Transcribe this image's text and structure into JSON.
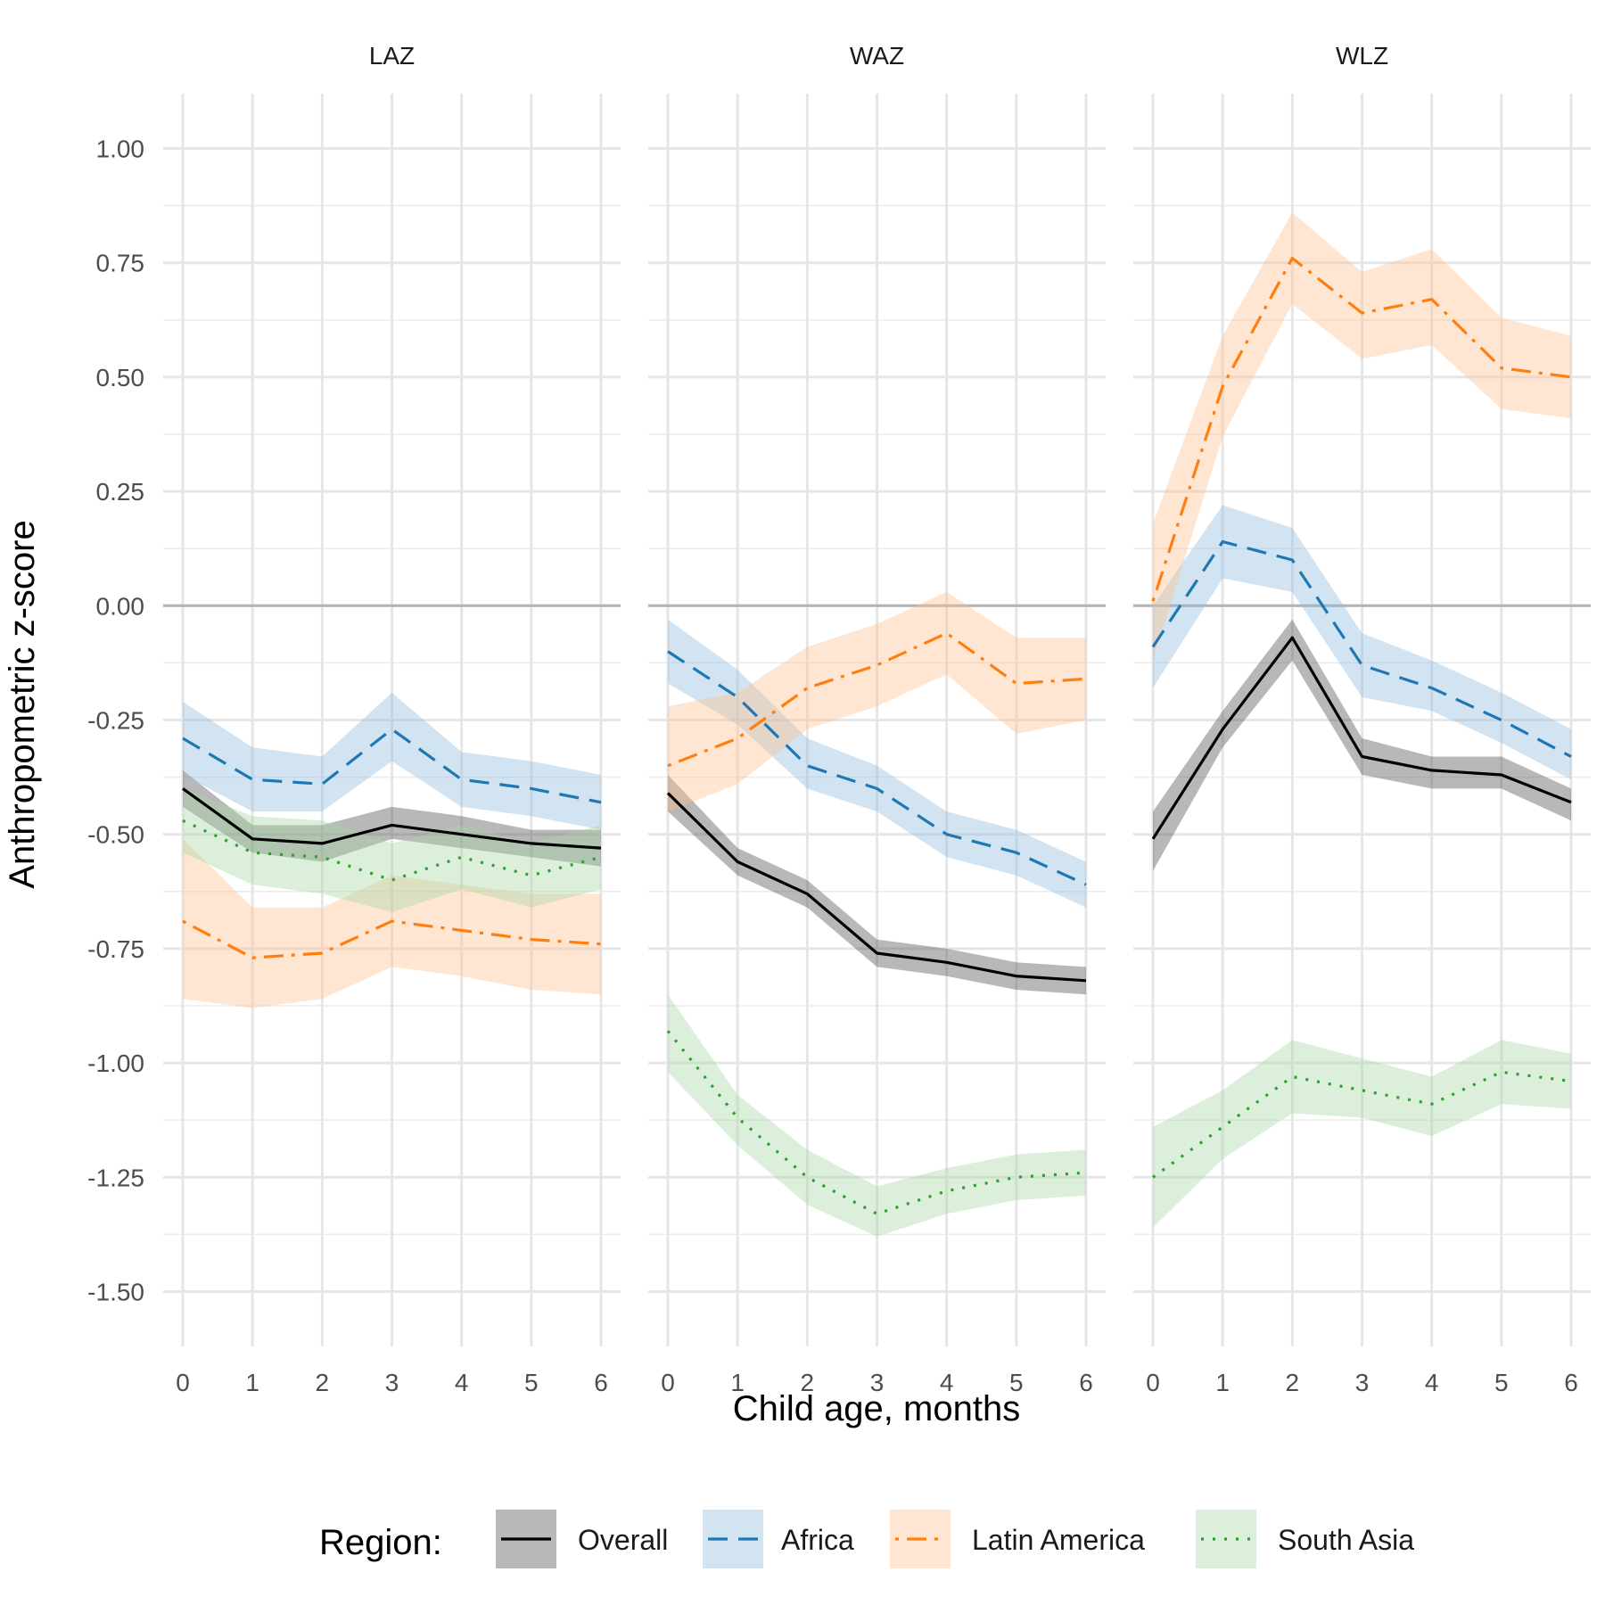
{
  "chart_data": {
    "type": "line",
    "ylabel": "Anthropometric z-score",
    "xlabel": "Child age, months",
    "x": [
      0,
      1,
      2,
      3,
      4,
      5,
      6
    ],
    "xticks": [
      "0",
      "1",
      "2",
      "3",
      "4",
      "5",
      "6"
    ],
    "ylim": [
      -1.62,
      1.12
    ],
    "yticks": [
      1.0,
      0.75,
      0.5,
      0.25,
      0.0,
      -0.25,
      -0.5,
      -0.75,
      -1.0,
      -1.25,
      -1.5
    ],
    "ytick_labels": [
      "1.00",
      "0.75",
      "0.50",
      "0.25",
      "0.00",
      "-0.25",
      "-0.50",
      "-0.75",
      "-1.00",
      "-1.25",
      "-1.50"
    ],
    "reference_line": 0,
    "grid": true,
    "legend_title": "Region:",
    "legend_position": "bottom",
    "series_styles": [
      {
        "name": "Overall",
        "color": "#000000",
        "fill": "#4d4d4d",
        "dash": "none"
      },
      {
        "name": "Africa",
        "color": "#1f77b4",
        "fill": "#8fb9dc",
        "dash": "dashed"
      },
      {
        "name": "Latin America",
        "color": "#ff7f0e",
        "fill": "#ffc08f",
        "dash": "dotdash"
      },
      {
        "name": "South Asia",
        "color": "#2ca02c",
        "fill": "#a5d8a5",
        "dash": "dotted"
      }
    ],
    "panels": [
      {
        "title": "LAZ",
        "series": [
          {
            "name": "Overall",
            "values": [
              -0.4,
              -0.51,
              -0.52,
              -0.48,
              -0.5,
              -0.52,
              -0.53
            ],
            "lower": [
              -0.44,
              -0.54,
              -0.56,
              -0.51,
              -0.53,
              -0.55,
              -0.57
            ],
            "upper": [
              -0.36,
              -0.48,
              -0.48,
              -0.44,
              -0.46,
              -0.49,
              -0.49
            ]
          },
          {
            "name": "Africa",
            "values": [
              -0.29,
              -0.38,
              -0.39,
              -0.27,
              -0.38,
              -0.4,
              -0.43
            ],
            "lower": [
              -0.37,
              -0.45,
              -0.45,
              -0.34,
              -0.44,
              -0.46,
              -0.49
            ],
            "upper": [
              -0.21,
              -0.31,
              -0.33,
              -0.19,
              -0.32,
              -0.34,
              -0.37
            ]
          },
          {
            "name": "Latin America",
            "values": [
              -0.69,
              -0.77,
              -0.76,
              -0.69,
              -0.71,
              -0.73,
              -0.74
            ],
            "lower": [
              -0.86,
              -0.88,
              -0.86,
              -0.79,
              -0.81,
              -0.84,
              -0.85
            ],
            "upper": [
              -0.51,
              -0.66,
              -0.66,
              -0.59,
              -0.61,
              -0.63,
              -0.63
            ]
          },
          {
            "name": "South Asia",
            "values": [
              -0.47,
              -0.54,
              -0.55,
              -0.6,
              -0.55,
              -0.59,
              -0.55
            ],
            "lower": [
              -0.54,
              -0.61,
              -0.63,
              -0.67,
              -0.62,
              -0.66,
              -0.62
            ],
            "upper": [
              -0.4,
              -0.46,
              -0.47,
              -0.52,
              -0.48,
              -0.52,
              -0.48
            ]
          }
        ]
      },
      {
        "title": "WAZ",
        "series": [
          {
            "name": "Overall",
            "values": [
              -0.41,
              -0.56,
              -0.63,
              -0.76,
              -0.78,
              -0.81,
              -0.82
            ],
            "lower": [
              -0.45,
              -0.59,
              -0.66,
              -0.79,
              -0.81,
              -0.84,
              -0.85
            ],
            "upper": [
              -0.37,
              -0.53,
              -0.6,
              -0.73,
              -0.75,
              -0.78,
              -0.79
            ]
          },
          {
            "name": "Africa",
            "values": [
              -0.1,
              -0.2,
              -0.35,
              -0.4,
              -0.5,
              -0.54,
              -0.61
            ],
            "lower": [
              -0.17,
              -0.26,
              -0.4,
              -0.45,
              -0.55,
              -0.59,
              -0.66
            ],
            "upper": [
              -0.03,
              -0.14,
              -0.29,
              -0.35,
              -0.45,
              -0.49,
              -0.56
            ]
          },
          {
            "name": "Latin America",
            "values": [
              -0.35,
              -0.29,
              -0.18,
              -0.13,
              -0.06,
              -0.17,
              -0.16
            ],
            "lower": [
              -0.45,
              -0.39,
              -0.27,
              -0.22,
              -0.15,
              -0.28,
              -0.25
            ],
            "upper": [
              -0.22,
              -0.19,
              -0.09,
              -0.04,
              0.03,
              -0.07,
              -0.07
            ]
          },
          {
            "name": "South Asia",
            "values": [
              -0.93,
              -1.12,
              -1.25,
              -1.33,
              -1.28,
              -1.25,
              -1.24
            ],
            "lower": [
              -1.02,
              -1.18,
              -1.31,
              -1.38,
              -1.33,
              -1.3,
              -1.29
            ],
            "upper": [
              -0.85,
              -1.07,
              -1.19,
              -1.27,
              -1.23,
              -1.2,
              -1.19
            ]
          }
        ]
      },
      {
        "title": "WLZ",
        "series": [
          {
            "name": "Overall",
            "values": [
              -0.51,
              -0.27,
              -0.07,
              -0.33,
              -0.36,
              -0.37,
              -0.43
            ],
            "lower": [
              -0.58,
              -0.31,
              -0.12,
              -0.37,
              -0.4,
              -0.4,
              -0.47
            ],
            "upper": [
              -0.45,
              -0.23,
              -0.03,
              -0.29,
              -0.33,
              -0.33,
              -0.4
            ]
          },
          {
            "name": "Africa",
            "values": [
              -0.09,
              0.14,
              0.1,
              -0.13,
              -0.18,
              -0.25,
              -0.33
            ],
            "lower": [
              -0.18,
              0.06,
              0.03,
              -0.2,
              -0.23,
              -0.3,
              -0.38
            ],
            "upper": [
              0.0,
              0.22,
              0.17,
              -0.06,
              -0.12,
              -0.19,
              -0.27
            ]
          },
          {
            "name": "Latin America",
            "values": [
              0.01,
              0.48,
              0.76,
              0.64,
              0.67,
              0.52,
              0.5
            ],
            "lower": [
              -0.12,
              0.37,
              0.66,
              0.54,
              0.57,
              0.43,
              0.41
            ],
            "upper": [
              0.18,
              0.59,
              0.86,
              0.73,
              0.78,
              0.63,
              0.59
            ]
          },
          {
            "name": "South Asia",
            "values": [
              -1.25,
              -1.14,
              -1.03,
              -1.06,
              -1.09,
              -1.02,
              -1.04
            ],
            "lower": [
              -1.36,
              -1.21,
              -1.11,
              -1.12,
              -1.16,
              -1.09,
              -1.1
            ],
            "upper": [
              -1.14,
              -1.06,
              -0.95,
              -0.99,
              -1.03,
              -0.95,
              -0.98
            ]
          }
        ]
      }
    ]
  }
}
